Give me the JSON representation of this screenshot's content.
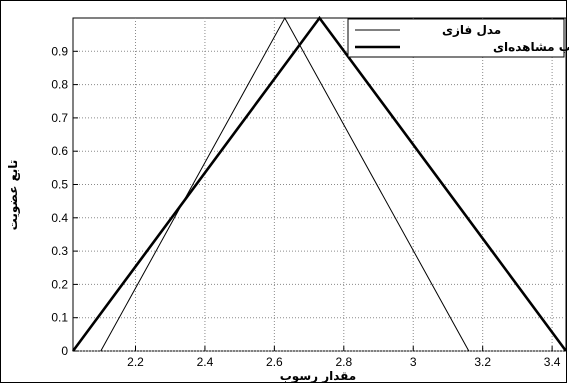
{
  "chart_data": {
    "type": "line",
    "xlabel": "مقدار رسوب",
    "ylabel": "تابع عضویت",
    "xlim": [
      2.02,
      3.44
    ],
    "ylim": [
      0,
      1
    ],
    "grid": true,
    "legend_position": "top-right",
    "x_ticks": [
      "2.2",
      "2.4",
      "2.6",
      "2.8",
      "3",
      "3.2",
      "3.4"
    ],
    "y_ticks": [
      "0",
      "0.1",
      "0.2",
      "0.3",
      "0.4",
      "0.5",
      "0.6",
      "0.7",
      "0.8",
      "0.9"
    ],
    "series": [
      {
        "name": "مدل فازی",
        "style": "thin",
        "color": "#000000",
        "x": [
          2.1,
          2.63,
          3.16
        ],
        "y": [
          0,
          1,
          0
        ]
      },
      {
        "name": "رسوب مشاهده‌ای",
        "style": "thick",
        "color": "#000000",
        "x": [
          2.02,
          2.73,
          3.44
        ],
        "y": [
          0,
          1,
          0
        ]
      }
    ]
  }
}
